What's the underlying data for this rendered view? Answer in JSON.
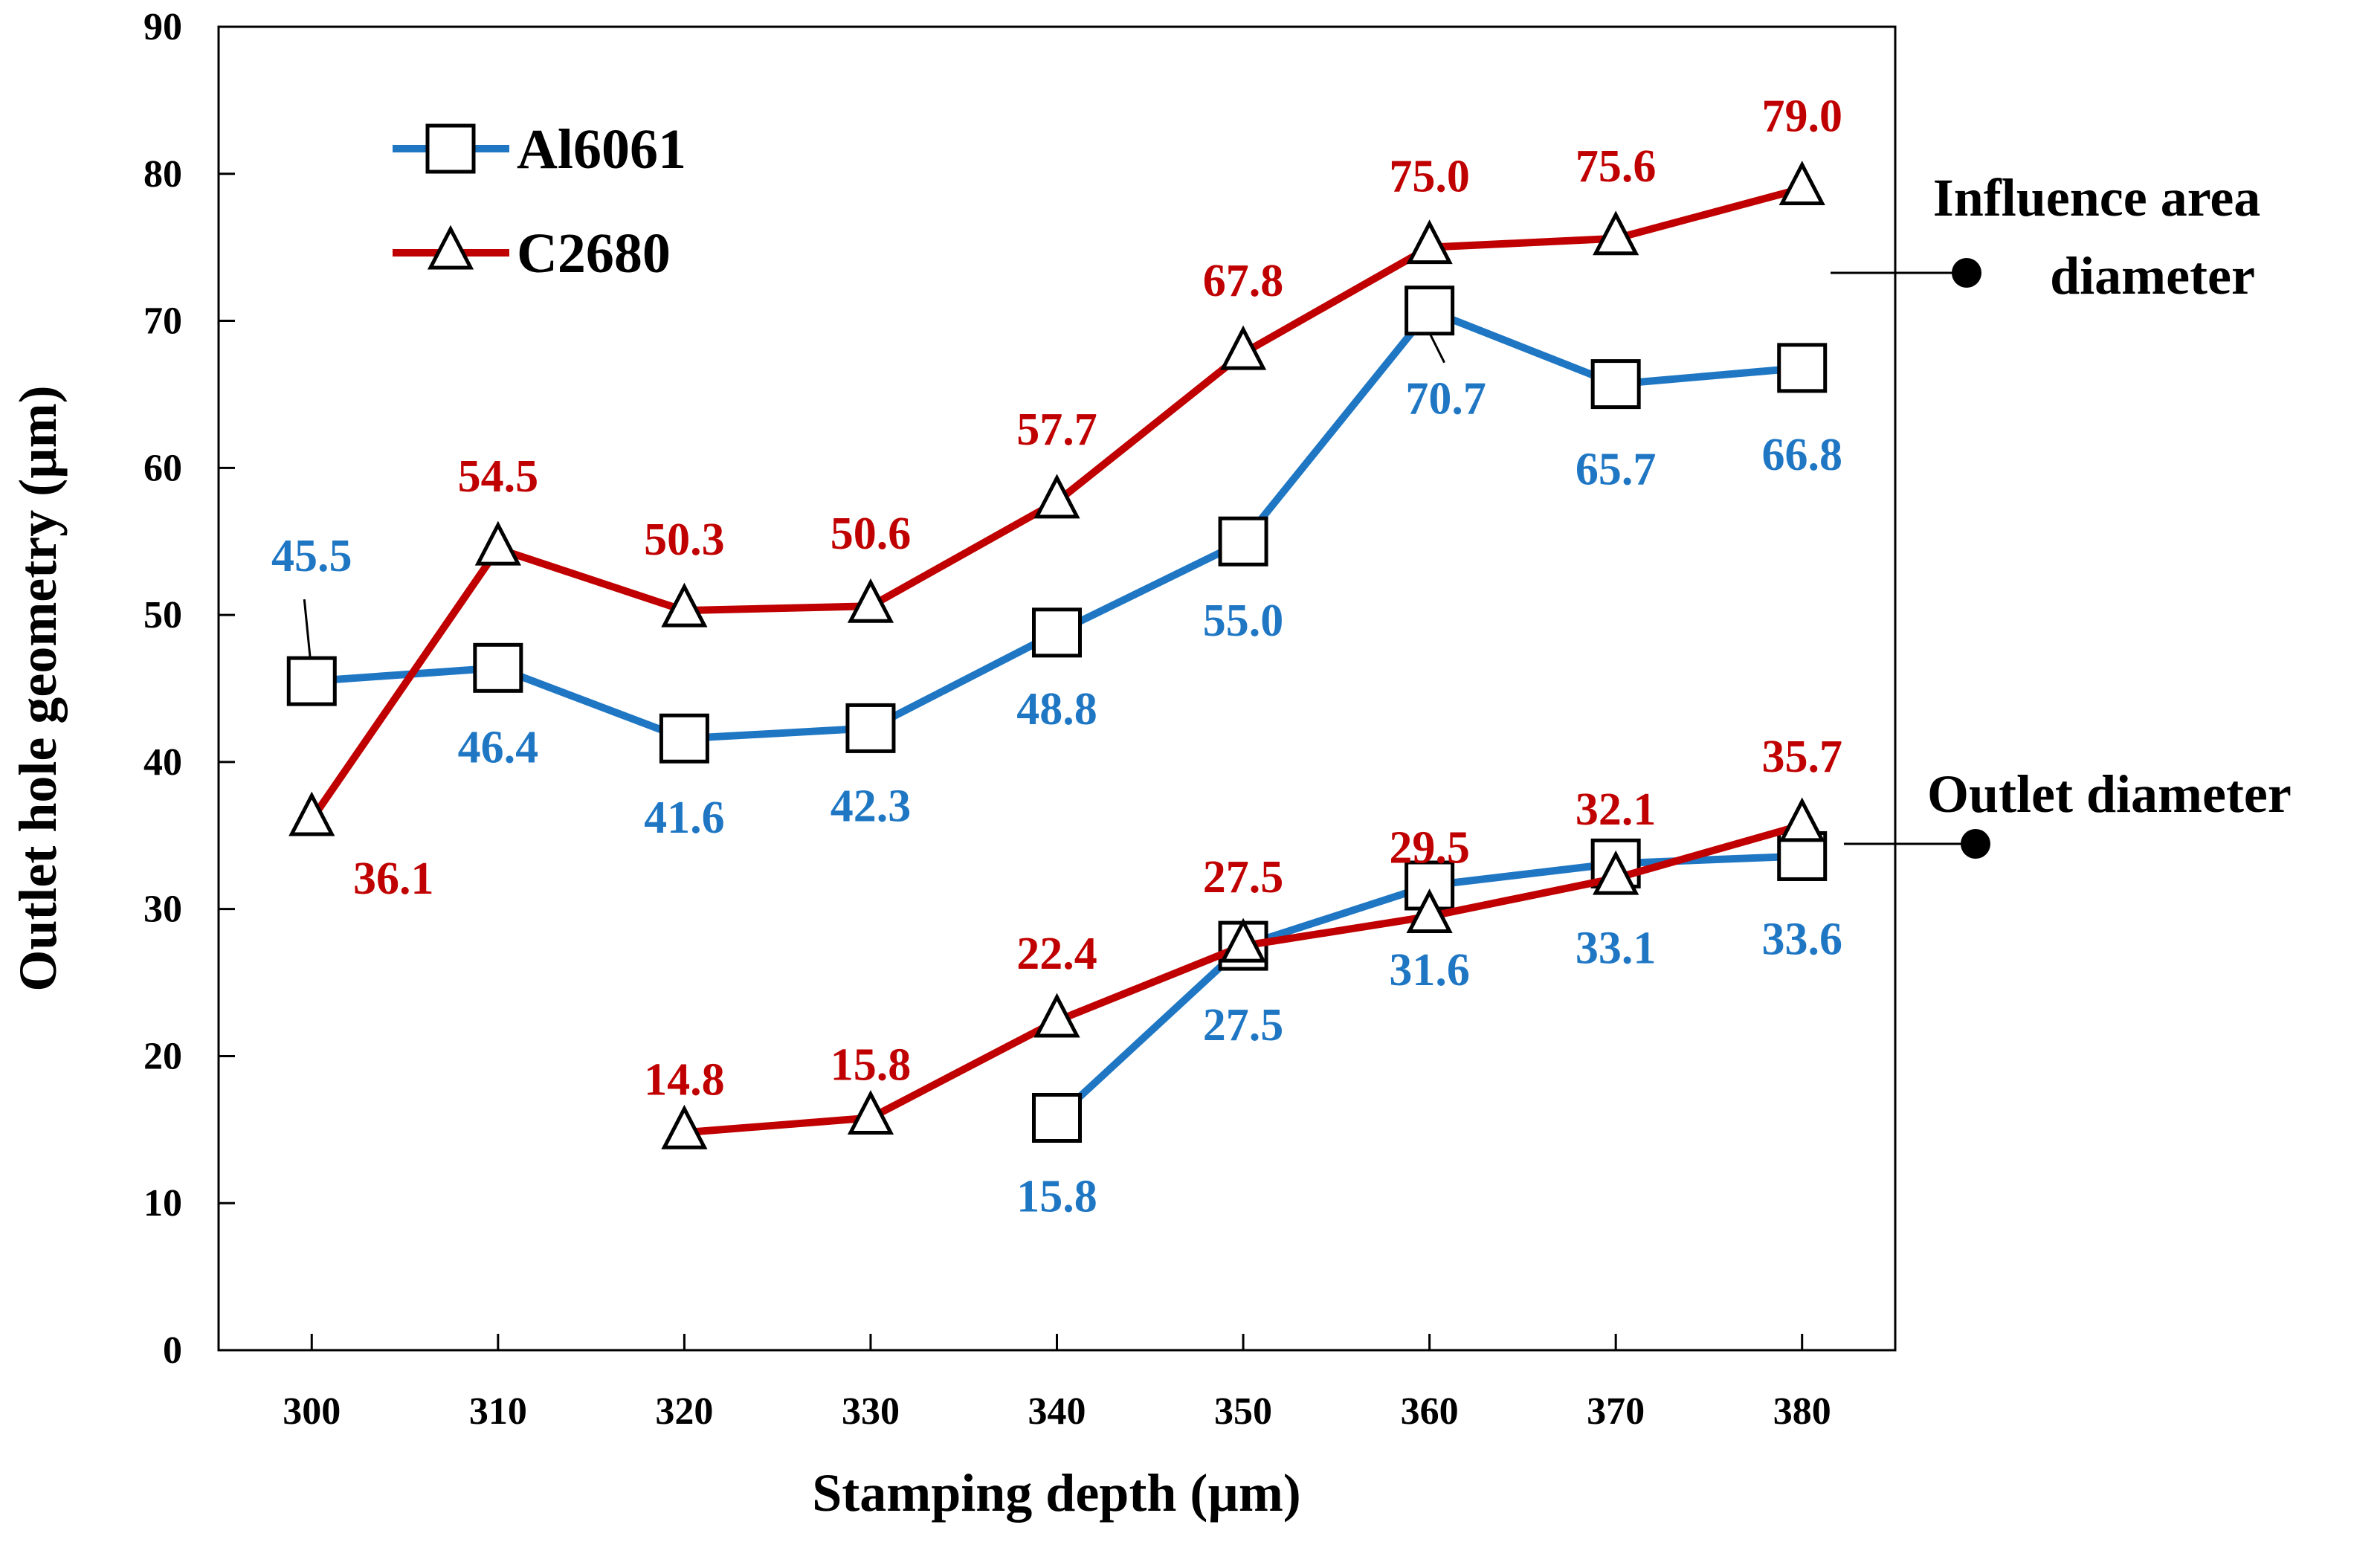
{
  "chart_data": {
    "type": "line",
    "xlabel": "Stamping depth (µm)",
    "ylabel": "Outlet hole geometry (µm)",
    "x_ticks": [
      300,
      310,
      320,
      330,
      340,
      350,
      360,
      370,
      380
    ],
    "x_tick_labels": [
      "300",
      "310",
      "320",
      "330",
      "340",
      "350",
      "360",
      "370",
      "380"
    ],
    "y_ticks": [
      0,
      10,
      20,
      30,
      40,
      50,
      60,
      70,
      80,
      90
    ],
    "y_tick_labels": [
      "0",
      "10",
      "20",
      "30",
      "40",
      "50",
      "60",
      "70",
      "80",
      "90"
    ],
    "xlim": [
      295,
      385
    ],
    "ylim": [
      0,
      90
    ],
    "grid": false,
    "legend": {
      "position": "top-left",
      "entries": [
        {
          "label": "Al6061",
          "marker": "square",
          "color": "#1f77c4"
        },
        {
          "label": "C2680",
          "marker": "triangle",
          "color": "#c00000"
        }
      ]
    },
    "series": [
      {
        "name": "Al6061",
        "group": "Influence area diameter",
        "marker": "square",
        "color": "#1f77c4",
        "x": [
          300,
          310,
          320,
          330,
          340,
          350,
          360,
          370,
          380
        ],
        "values": [
          45.5,
          46.4,
          41.6,
          42.3,
          48.8,
          55.0,
          70.7,
          65.7,
          66.8
        ],
        "labels": [
          "45.5",
          "46.4",
          "41.6",
          "42.3",
          "48.8",
          "55.0",
          "70.7",
          "65.7",
          "66.8"
        ]
      },
      {
        "name": "C2680",
        "group": "Influence area diameter",
        "marker": "triangle",
        "color": "#c00000",
        "x": [
          300,
          310,
          320,
          330,
          340,
          350,
          360,
          370,
          380
        ],
        "values": [
          36.1,
          54.5,
          50.3,
          50.6,
          57.7,
          67.8,
          75.0,
          75.6,
          79.0
        ],
        "labels": [
          "36.1",
          "54.5",
          "50.3",
          "50.6",
          "57.7",
          "67.8",
          "75.0",
          "75.6",
          "79.0"
        ]
      },
      {
        "name": "Al6061",
        "group": "Outlet diameter",
        "marker": "square",
        "color": "#1f77c4",
        "x": [
          340,
          350,
          360,
          370,
          380
        ],
        "values": [
          15.8,
          27.5,
          31.6,
          33.1,
          33.6
        ],
        "labels": [
          "15.8",
          "27.5",
          "31.6",
          "33.1",
          "33.6"
        ]
      },
      {
        "name": "C2680",
        "group": "Outlet diameter",
        "marker": "triangle",
        "color": "#c00000",
        "x": [
          320,
          330,
          340,
          350,
          360,
          370,
          380
        ],
        "values": [
          14.8,
          15.8,
          22.4,
          27.5,
          29.5,
          32.1,
          35.7
        ],
        "labels": [
          "14.8",
          "15.8",
          "22.4",
          "27.5",
          "29.5",
          "32.1",
          "35.7"
        ]
      }
    ],
    "annotations": [
      {
        "text_lines": [
          "Influence area",
          "diameter"
        ],
        "points_to": "upper curves"
      },
      {
        "text_lines": [
          "Outlet diameter"
        ],
        "points_to": "lower curves"
      }
    ]
  }
}
